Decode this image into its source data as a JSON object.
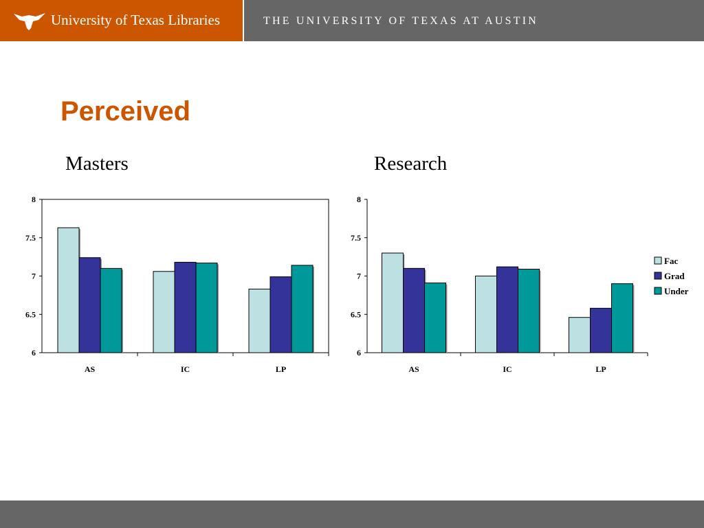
{
  "header": {
    "library_title": "University of Texas Libraries",
    "university_title": "THE UNIVERSITY OF TEXAS AT AUSTIN",
    "brand_color": "#cc5500",
    "bar_color": "#666666",
    "logo_icon": "longhorn-logo-icon"
  },
  "slide": {
    "title": "Perceived"
  },
  "legend": [
    {
      "label": "Fac",
      "color": "#bde0e3"
    },
    {
      "label": "Grad",
      "color": "#333399"
    },
    {
      "label": "Under",
      "color": "#009999"
    }
  ],
  "chart_data": [
    {
      "type": "bar",
      "title": "Masters",
      "categories": [
        "AS",
        "IC",
        "LP"
      ],
      "series": [
        {
          "name": "Fac",
          "values": [
            7.63,
            7.06,
            6.83
          ]
        },
        {
          "name": "Grad",
          "values": [
            7.24,
            7.18,
            6.99
          ]
        },
        {
          "name": "Under",
          "values": [
            7.1,
            7.17,
            7.14
          ]
        }
      ],
      "ylim": [
        6,
        8
      ],
      "yticks": [
        "6",
        "6.5",
        "7",
        "7.5",
        "8"
      ],
      "plot_border": true,
      "legend": "none"
    },
    {
      "type": "bar",
      "title": "Research",
      "categories": [
        "AS",
        "IC",
        "LP"
      ],
      "series": [
        {
          "name": "Fac",
          "values": [
            7.3,
            7.0,
            6.46
          ]
        },
        {
          "name": "Grad",
          "values": [
            7.1,
            7.12,
            6.58
          ]
        },
        {
          "name": "Under",
          "values": [
            6.91,
            7.09,
            6.9
          ]
        }
      ],
      "ylim": [
        6,
        8
      ],
      "yticks": [
        "6",
        "6.5",
        "7",
        "7.5",
        "8"
      ],
      "plot_border": false,
      "legend": "right"
    }
  ]
}
